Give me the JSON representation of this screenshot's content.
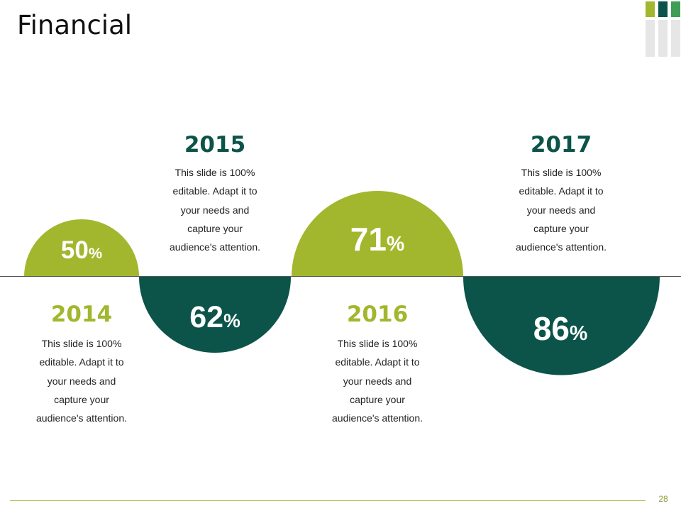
{
  "title": "Financial",
  "page_number": "28",
  "colors": {
    "green": "#a2b72d",
    "teal": "#0c5449",
    "text_dark": "#222222",
    "deco_light": "#e6e6e6"
  },
  "items": [
    {
      "year": "2014",
      "percent_value": "50",
      "percent_sign": "%",
      "description": [
        "This slide is 100%",
        "editable. Adapt it to",
        "your needs and",
        "capture your",
        "audience's attention."
      ]
    },
    {
      "year": "2015",
      "percent_value": "62",
      "percent_sign": "%",
      "description": [
        "This slide is 100%",
        "editable. Adapt it to",
        "your needs and",
        "capture your",
        "audience's attention."
      ]
    },
    {
      "year": "2016",
      "percent_value": "71",
      "percent_sign": "%",
      "description": [
        "This slide is 100%",
        "editable. Adapt it to",
        "your needs and",
        "capture your",
        "audience's attention."
      ]
    },
    {
      "year": "2017",
      "percent_value": "86",
      "percent_sign": "%",
      "description": [
        "This slide is 100%",
        "editable. Adapt it to",
        "your needs and",
        "capture your",
        "audience's attention."
      ]
    }
  ]
}
